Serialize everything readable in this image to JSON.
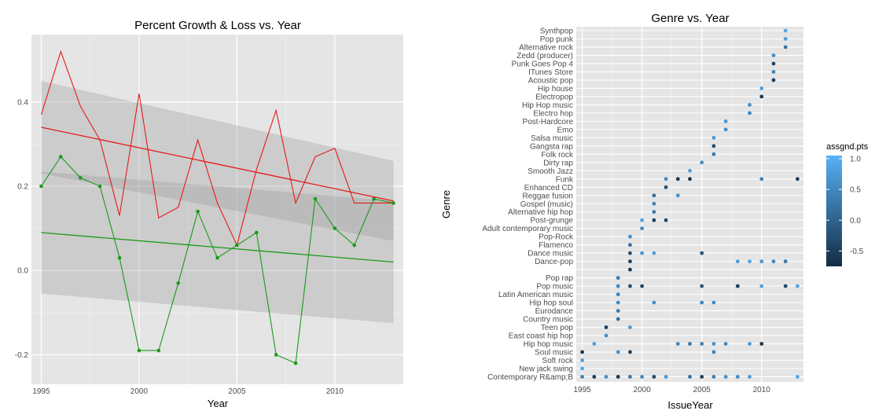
{
  "chart_data": [
    {
      "type": "line",
      "title": "Percent Growth & Loss vs. Year",
      "xlabel": "Year",
      "ylabel": "",
      "xlim": [
        1994.5,
        2013.5
      ],
      "ylim": [
        -0.27,
        0.56
      ],
      "x_ticks": [
        1995,
        2000,
        2005,
        2010
      ],
      "x_tick_labels": [
        "1995",
        "2000",
        "2005",
        "2010"
      ],
      "y_ticks": [
        -0.2,
        0.0,
        0.2,
        0.4
      ],
      "y_tick_labels": [
        "-0.2",
        "0.0",
        "0.2",
        "0.4"
      ],
      "grid": true,
      "series": [
        {
          "color": "#e41a1c",
          "x": [
            1995,
            1996,
            1997,
            1998,
            1999,
            2000,
            2001,
            2002,
            2003,
            2004,
            2005,
            2006,
            2007,
            2008,
            2009,
            2010,
            2011,
            2012,
            2013
          ],
          "values": [
            0.37,
            0.52,
            0.39,
            0.31,
            0.13,
            0.42,
            0.125,
            0.15,
            0.31,
            0.16,
            0.06,
            0.24,
            0.38,
            0.16,
            0.27,
            0.29,
            0.16,
            0.16,
            0.16
          ],
          "trend": [
            0.34,
            0.165
          ],
          "band_lower": [
            0.23,
            0.07
          ],
          "band_upper": [
            0.45,
            0.26
          ]
        },
        {
          "color": "#1a9a1a",
          "markers": true,
          "x": [
            1995,
            1996,
            1997,
            1998,
            1999,
            2000,
            2001,
            2002,
            2003,
            2004,
            2005,
            2006,
            2007,
            2008,
            2009,
            2010,
            2011,
            2012,
            2013
          ],
          "values": [
            0.2,
            0.27,
            0.22,
            0.2,
            0.03,
            -0.19,
            -0.19,
            -0.03,
            0.14,
            0.03,
            0.06,
            0.09,
            -0.2,
            -0.22,
            0.17,
            0.1,
            0.06,
            0.17,
            0.16
          ],
          "trend": [
            0.09,
            0.02
          ],
          "band_lower": [
            -0.055,
            -0.125
          ],
          "band_upper": [
            0.235,
            0.165
          ]
        }
      ]
    },
    {
      "type": "scatter",
      "title": "Genre vs. Year",
      "xlabel": "IssueYear",
      "ylabel": "Genre",
      "xlim": [
        1994.5,
        2013.5
      ],
      "x_ticks": [
        1995,
        2000,
        2005,
        2010
      ],
      "x_tick_labels": [
        "1995",
        "2000",
        "2005",
        "2010"
      ],
      "grid": true,
      "categories": [
        "Synthpop",
        "Pop punk",
        "Alternative rock",
        "Zedd (producer)",
        "Punk Goes Pop 4",
        "ITunes Store",
        "Acoustic pop",
        "Hip house",
        "Electropop",
        "Hip Hop music",
        "Electro hop",
        "Post-Hardcore",
        "Emo",
        "Salsa music",
        "Gangsta rap",
        "Folk rock",
        "Dirty rap",
        "Smooth Jazz",
        "Funk",
        "Enhanced CD",
        "Reggae fusion",
        "Gospel (music)",
        "Alternative hip hop",
        "Post-grunge",
        "Adult contemporary music",
        "Pop-Rock",
        "Flamenco",
        "Dance music",
        "Dance-pop",
        "",
        "Pop rap",
        "Pop music",
        "Latin American music",
        "Hip hop soul",
        "Eurodance",
        "Country music",
        "Teen pop",
        "East coast hip hop",
        "Hip hop music",
        "Soul music",
        "Soft rock",
        "New jack swing",
        "Contemporary R&amp;B"
      ],
      "legend": {
        "title": "assgnd.pts",
        "placement": "right",
        "ticks": [
          1.0,
          0.5,
          0.0,
          -0.5
        ],
        "tick_labels": [
          "1.0",
          "0.5",
          "0.0",
          "-0.5"
        ],
        "range": [
          -0.75,
          1.05
        ],
        "color_low": "#132b43",
        "color_high": "#56b1f7"
      },
      "points": [
        {
          "x": 2012,
          "c": 0,
          "v": 0.9
        },
        {
          "x": 2012,
          "c": 1,
          "v": 0.8
        },
        {
          "x": 2012,
          "c": 2,
          "v": 0.2
        },
        {
          "x": 2011,
          "c": 3,
          "v": 0.6
        },
        {
          "x": 2011,
          "c": 4,
          "v": -0.4
        },
        {
          "x": 2011,
          "c": 5,
          "v": 0.5
        },
        {
          "x": 2011,
          "c": 6,
          "v": -0.5
        },
        {
          "x": 2010,
          "c": 7,
          "v": 0.8
        },
        {
          "x": 2010,
          "c": 8,
          "v": -0.6
        },
        {
          "x": 2009,
          "c": 9,
          "v": 0.6
        },
        {
          "x": 2009,
          "c": 10,
          "v": 0.5
        },
        {
          "x": 2007,
          "c": 11,
          "v": 0.7
        },
        {
          "x": 2007,
          "c": 12,
          "v": 0.6
        },
        {
          "x": 2006,
          "c": 13,
          "v": 0.7
        },
        {
          "x": 2006,
          "c": 14,
          "v": -0.3
        },
        {
          "x": 2006,
          "c": 15,
          "v": 0.3
        },
        {
          "x": 2005,
          "c": 16,
          "v": 0.6
        },
        {
          "x": 2004,
          "c": 17,
          "v": 0.8
        },
        {
          "x": 2002,
          "c": 18,
          "v": 0.5
        },
        {
          "x": 2003,
          "c": 18,
          "v": -0.6
        },
        {
          "x": 2004,
          "c": 18,
          "v": -0.7
        },
        {
          "x": 2010,
          "c": 18,
          "v": 0.4
        },
        {
          "x": 2013,
          "c": 18,
          "v": -0.5
        },
        {
          "x": 2002,
          "c": 19,
          "v": -0.3
        },
        {
          "x": 2001,
          "c": 20,
          "v": 0.1
        },
        {
          "x": 2003,
          "c": 20,
          "v": 0.6
        },
        {
          "x": 2001,
          "c": 21,
          "v": 0.4
        },
        {
          "x": 2001,
          "c": 22,
          "v": 0.3
        },
        {
          "x": 2000,
          "c": 23,
          "v": 0.8
        },
        {
          "x": 2001,
          "c": 23,
          "v": -0.5
        },
        {
          "x": 2002,
          "c": 23,
          "v": -0.4
        },
        {
          "x": 2000,
          "c": 24,
          "v": 0.5
        },
        {
          "x": 1999,
          "c": 25,
          "v": 0.6
        },
        {
          "x": 1999,
          "c": 26,
          "v": 0.2
        },
        {
          "x": 1999,
          "c": 27,
          "v": -0.3
        },
        {
          "x": 2000,
          "c": 27,
          "v": 0.7
        },
        {
          "x": 2001,
          "c": 27,
          "v": 0.8
        },
        {
          "x": 2005,
          "c": 27,
          "v": -0.2
        },
        {
          "x": 1999,
          "c": 28,
          "v": -0.5
        },
        {
          "x": 2008,
          "c": 28,
          "v": 0.8
        },
        {
          "x": 2009,
          "c": 28,
          "v": 0.9
        },
        {
          "x": 2010,
          "c": 28,
          "v": 0.7
        },
        {
          "x": 2011,
          "c": 28,
          "v": 0.5
        },
        {
          "x": 2012,
          "c": 28,
          "v": 0.3
        },
        {
          "x": 1999,
          "c": 29,
          "v": -0.6
        },
        {
          "x": 1998,
          "c": 30,
          "v": 0.3
        },
        {
          "x": 1998,
          "c": 31,
          "v": 0.5
        },
        {
          "x": 1999,
          "c": 31,
          "v": -0.3
        },
        {
          "x": 2000,
          "c": 31,
          "v": -0.4
        },
        {
          "x": 2005,
          "c": 31,
          "v": -0.2
        },
        {
          "x": 2008,
          "c": 31,
          "v": -0.5
        },
        {
          "x": 2010,
          "c": 31,
          "v": 0.8
        },
        {
          "x": 2012,
          "c": 31,
          "v": -0.4
        },
        {
          "x": 2013,
          "c": 31,
          "v": 0.9
        },
        {
          "x": 1998,
          "c": 32,
          "v": 0.4
        },
        {
          "x": 1998,
          "c": 33,
          "v": 0.5
        },
        {
          "x": 2001,
          "c": 33,
          "v": 0.6
        },
        {
          "x": 2005,
          "c": 33,
          "v": 0.4
        },
        {
          "x": 2006,
          "c": 33,
          "v": 0.5
        },
        {
          "x": 1998,
          "c": 34,
          "v": 0.3
        },
        {
          "x": 1998,
          "c": 35,
          "v": 0.2
        },
        {
          "x": 1997,
          "c": 36,
          "v": -0.5
        },
        {
          "x": 1999,
          "c": 36,
          "v": 0.7
        },
        {
          "x": 1997,
          "c": 37,
          "v": 0.6
        },
        {
          "x": 1996,
          "c": 38,
          "v": 0.8
        },
        {
          "x": 2003,
          "c": 38,
          "v": 0.5
        },
        {
          "x": 2004,
          "c": 38,
          "v": 0.3
        },
        {
          "x": 2005,
          "c": 38,
          "v": 0.4
        },
        {
          "x": 2006,
          "c": 38,
          "v": 0.6
        },
        {
          "x": 2007,
          "c": 38,
          "v": 0.5
        },
        {
          "x": 2009,
          "c": 38,
          "v": 0.7
        },
        {
          "x": 2010,
          "c": 38,
          "v": -0.6
        },
        {
          "x": 1995,
          "c": 39,
          "v": -0.6
        },
        {
          "x": 1998,
          "c": 39,
          "v": 0.6
        },
        {
          "x": 1999,
          "c": 39,
          "v": -0.5
        },
        {
          "x": 2006,
          "c": 39,
          "v": 0.4
        },
        {
          "x": 1995,
          "c": 40,
          "v": 0.8
        },
        {
          "x": 1995,
          "c": 41,
          "v": 0.9
        },
        {
          "x": 1995,
          "c": 42,
          "v": 0.4
        },
        {
          "x": 1996,
          "c": 42,
          "v": -0.5
        },
        {
          "x": 1997,
          "c": 42,
          "v": 0.6
        },
        {
          "x": 1998,
          "c": 42,
          "v": -0.6
        },
        {
          "x": 1999,
          "c": 42,
          "v": 0.3
        },
        {
          "x": 2000,
          "c": 42,
          "v": 0.5
        },
        {
          "x": 2001,
          "c": 42,
          "v": -0.4
        },
        {
          "x": 2002,
          "c": 42,
          "v": 0.7
        },
        {
          "x": 2004,
          "c": 42,
          "v": 0.2
        },
        {
          "x": 2005,
          "c": 42,
          "v": -0.5
        },
        {
          "x": 2006,
          "c": 42,
          "v": 0.4
        },
        {
          "x": 2007,
          "c": 42,
          "v": 0.6
        },
        {
          "x": 2008,
          "c": 42,
          "v": 0.5
        },
        {
          "x": 2009,
          "c": 42,
          "v": 0.8
        },
        {
          "x": 2013,
          "c": 42,
          "v": 0.9
        }
      ]
    }
  ]
}
